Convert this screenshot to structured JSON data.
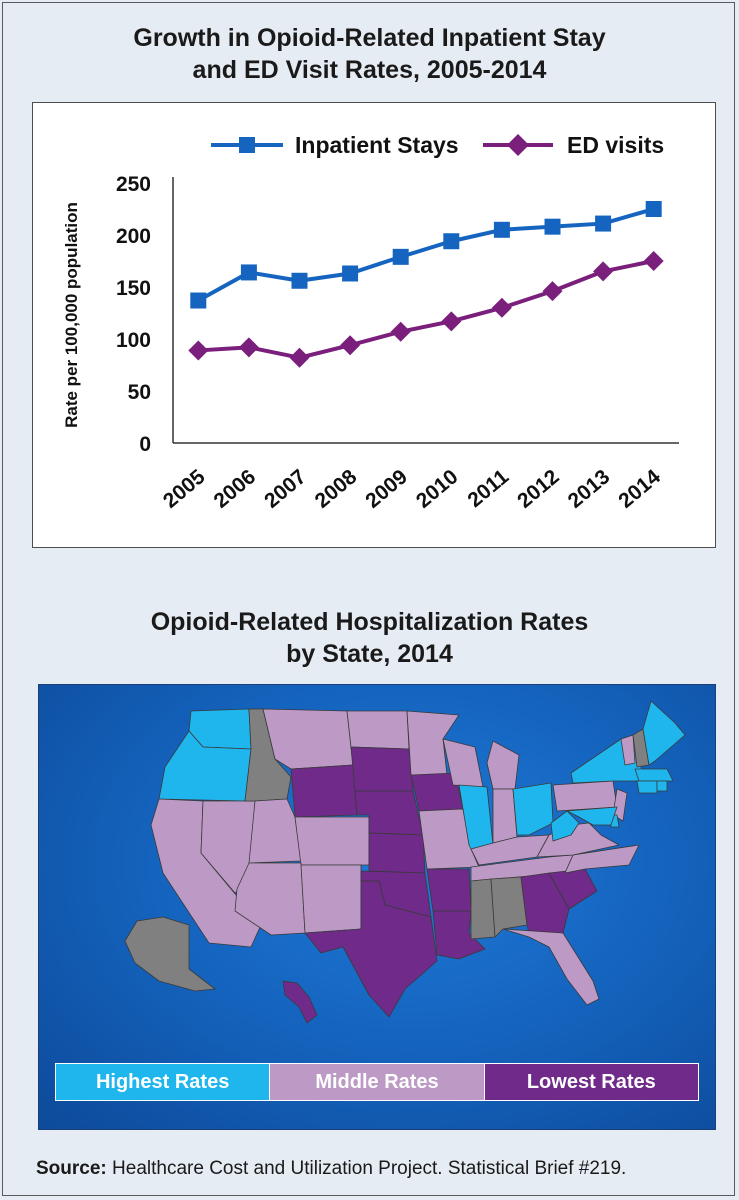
{
  "chart_title": {
    "line1": "Growth in Opioid-Related Inpatient Stay",
    "line2": "and ED Visit Rates, 2005-2014"
  },
  "map_title": {
    "line1": "Opioid-Related Hospitalization Rates",
    "line2": "by State, 2014"
  },
  "legend": {
    "high": "Highest Rates",
    "middle": "Middle Rates",
    "low": "Lowest Rates"
  },
  "colors": {
    "inpatient": "#1565c0",
    "ed": "#7a1f7c",
    "highest": "#1fb6ee",
    "middle": "#bd9ac6",
    "lowest": "#6f2a8a",
    "nodata": "#808080"
  },
  "source": {
    "label": "Source:",
    "text": "Healthcare Cost and Utilization Project. Statistical Brief #219."
  },
  "chart_data": {
    "type": "line",
    "title": "Growth in Opioid-Related Inpatient Stay and ED Visit Rates, 2005-2014",
    "xlabel": "",
    "ylabel": "Rate per 100,000 population",
    "x": [
      "2005",
      "2006",
      "2007",
      "2008",
      "2009",
      "2010",
      "2011",
      "2012",
      "2013",
      "2014"
    ],
    "yticks": [
      "0",
      "50",
      "100",
      "150",
      "200",
      "250"
    ],
    "ylim": [
      0,
      250
    ],
    "legend_position": "top",
    "grid": false,
    "series": [
      {
        "name": "Inpatient Stays",
        "marker": "square",
        "values": [
          137,
          164,
          156,
          163,
          179,
          194,
          205,
          208,
          211,
          225
        ]
      },
      {
        "name": "ED visits",
        "marker": "diamond",
        "values": [
          89,
          92,
          82,
          94,
          107,
          117,
          130,
          146,
          165,
          175
        ]
      }
    ]
  },
  "map_states": [
    {
      "name": "Washington",
      "category": "highest"
    },
    {
      "name": "Oregon",
      "category": "highest"
    },
    {
      "name": "Illinois",
      "category": "highest"
    },
    {
      "name": "Ohio",
      "category": "highest"
    },
    {
      "name": "West Virginia",
      "category": "highest"
    },
    {
      "name": "New York",
      "category": "highest"
    },
    {
      "name": "Maine",
      "category": "highest"
    },
    {
      "name": "Maryland",
      "category": "highest"
    },
    {
      "name": "Massachusetts",
      "category": "highest"
    },
    {
      "name": "Connecticut",
      "category": "highest"
    },
    {
      "name": "Rhode Island",
      "category": "highest"
    },
    {
      "name": "Delaware",
      "category": "highest"
    },
    {
      "name": "California",
      "category": "middle"
    },
    {
      "name": "Nevada",
      "category": "middle"
    },
    {
      "name": "Utah",
      "category": "middle"
    },
    {
      "name": "Arizona",
      "category": "middle"
    },
    {
      "name": "Montana",
      "category": "middle"
    },
    {
      "name": "Colorado",
      "category": "middle"
    },
    {
      "name": "New Mexico",
      "category": "middle"
    },
    {
      "name": "North Dakota",
      "category": "middle"
    },
    {
      "name": "Minnesota",
      "category": "middle"
    },
    {
      "name": "Wisconsin",
      "category": "middle"
    },
    {
      "name": "Michigan",
      "category": "middle"
    },
    {
      "name": "Missouri",
      "category": "middle"
    },
    {
      "name": "Indiana",
      "category": "middle"
    },
    {
      "name": "Kentucky",
      "category": "middle"
    },
    {
      "name": "Tennessee",
      "category": "middle"
    },
    {
      "name": "Pennsylvania",
      "category": "middle"
    },
    {
      "name": "Virginia",
      "category": "middle"
    },
    {
      "name": "North Carolina",
      "category": "middle"
    },
    {
      "name": "Florida",
      "category": "middle"
    },
    {
      "name": "New Jersey",
      "category": "middle"
    },
    {
      "name": "Vermont",
      "category": "middle"
    },
    {
      "name": "Wyoming",
      "category": "lowest"
    },
    {
      "name": "South Dakota",
      "category": "lowest"
    },
    {
      "name": "Nebraska",
      "category": "lowest"
    },
    {
      "name": "Kansas",
      "category": "lowest"
    },
    {
      "name": "Oklahoma",
      "category": "lowest"
    },
    {
      "name": "Texas",
      "category": "lowest"
    },
    {
      "name": "Iowa",
      "category": "lowest"
    },
    {
      "name": "Arkansas",
      "category": "lowest"
    },
    {
      "name": "Louisiana",
      "category": "lowest"
    },
    {
      "name": "Georgia",
      "category": "lowest"
    },
    {
      "name": "South Carolina",
      "category": "lowest"
    },
    {
      "name": "Hawaii",
      "category": "lowest"
    },
    {
      "name": "Idaho",
      "category": "nodata"
    },
    {
      "name": "Mississippi",
      "category": "nodata"
    },
    {
      "name": "Alabama",
      "category": "nodata"
    },
    {
      "name": "Alaska",
      "category": "nodata"
    },
    {
      "name": "New Hampshire",
      "category": "nodata"
    }
  ]
}
